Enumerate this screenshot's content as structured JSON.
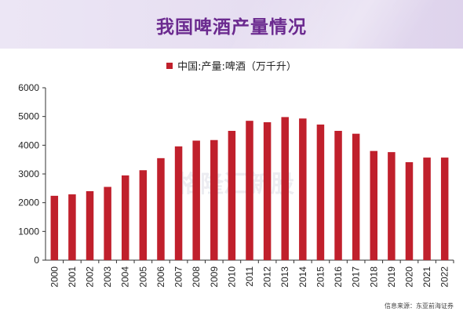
{
  "title": "我国啤酒产量情况",
  "source": "信息来源：东亚前海证券",
  "watermark": "格隆汇新股",
  "chart_data": {
    "type": "bar",
    "categories": [
      "2000",
      "2001",
      "2002",
      "2003",
      "2004",
      "2005",
      "2006",
      "2007",
      "2008",
      "2009",
      "2010",
      "2011",
      "2012",
      "2013",
      "2014",
      "2015",
      "2016",
      "2017",
      "2018",
      "2019",
      "2020",
      "2021",
      "2022"
    ],
    "series": [
      {
        "name": "中国:产量:啤酒（万千升）",
        "values": [
          2240,
          2290,
          2400,
          2550,
          2950,
          3130,
          3550,
          3960,
          4160,
          4180,
          4500,
          4850,
          4800,
          4980,
          4930,
          4720,
          4500,
          4400,
          3800,
          3760,
          3410,
          3570,
          3570
        ]
      }
    ],
    "ylim": [
      0,
      6000
    ],
    "yticks": [
      0,
      1000,
      2000,
      3000,
      4000,
      5000,
      6000
    ],
    "color": "#c0202c",
    "legend_position": "top-center",
    "grid": false
  }
}
